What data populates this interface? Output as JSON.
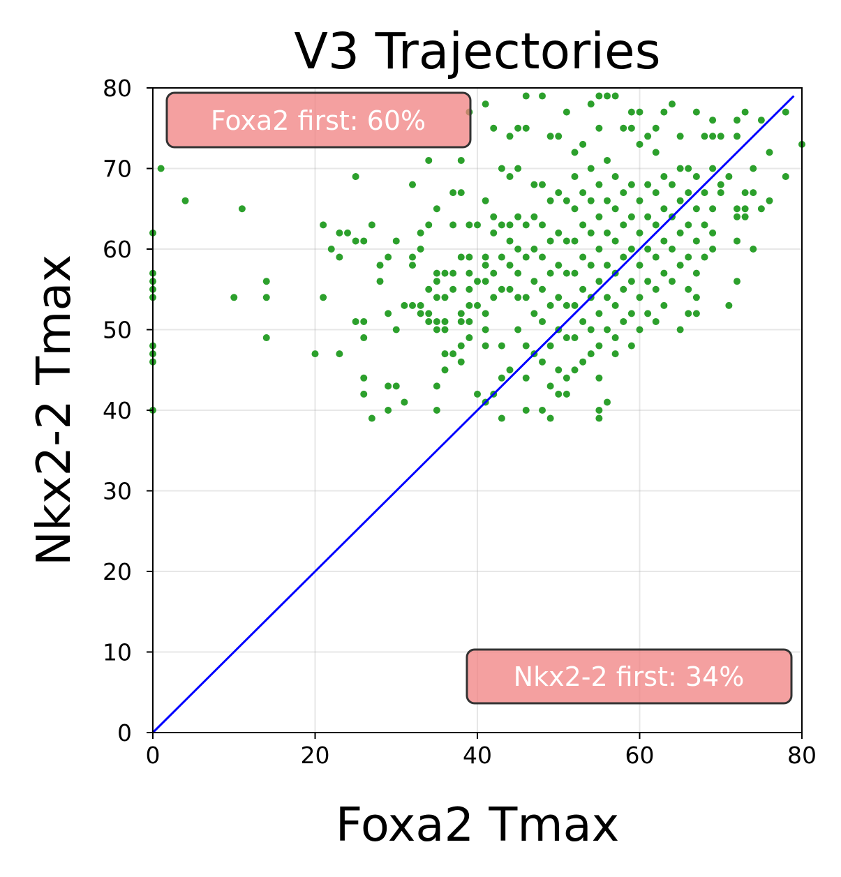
{
  "chart_data": {
    "type": "scatter",
    "title": "V3 Trajectories",
    "xlabel": "Foxa2 Tmax",
    "ylabel": "Nkx2-2 Tmax",
    "xlim": [
      0,
      80
    ],
    "ylim": [
      0,
      80
    ],
    "xticks": [
      "0",
      "20",
      "40",
      "60",
      "80"
    ],
    "yticks": [
      "0",
      "10",
      "20",
      "30",
      "40",
      "50",
      "60",
      "70",
      "80"
    ],
    "grid": true,
    "colors": {
      "points": "#2ca02c",
      "diagonal": "#0000ff",
      "annotation_fill": "#f08080",
      "annotation_edge": "#333333",
      "annotation_text": "#ffffff"
    },
    "diagonal_line": {
      "x": [
        0,
        79
      ],
      "y": [
        0,
        79
      ]
    },
    "annotations": [
      {
        "text": "Foxa2 first: 60%",
        "position": "top-left"
      },
      {
        "text": "Nkx2-2 first: 34%",
        "position": "bottom-right"
      }
    ],
    "series": [
      {
        "points": [
          [
            0,
            62
          ],
          [
            0,
            57
          ],
          [
            0,
            56
          ],
          [
            0,
            55
          ],
          [
            0,
            54
          ],
          [
            0,
            48
          ],
          [
            0,
            47
          ],
          [
            0,
            46
          ],
          [
            0,
            40
          ],
          [
            1,
            70
          ],
          [
            4,
            66
          ],
          [
            10,
            54
          ],
          [
            11,
            65
          ],
          [
            14,
            56
          ],
          [
            14,
            54
          ],
          [
            14,
            49
          ],
          [
            20,
            47
          ],
          [
            21,
            63
          ],
          [
            21,
            54
          ],
          [
            22,
            60
          ],
          [
            23,
            62
          ],
          [
            23,
            59
          ],
          [
            23,
            47
          ],
          [
            24,
            62
          ],
          [
            25,
            69
          ],
          [
            25,
            61
          ],
          [
            25,
            51
          ],
          [
            26,
            61
          ],
          [
            26,
            51
          ],
          [
            26,
            49
          ],
          [
            26,
            44
          ],
          [
            26,
            42
          ],
          [
            27,
            63
          ],
          [
            27,
            39
          ],
          [
            28,
            58
          ],
          [
            28,
            56
          ],
          [
            29,
            59
          ],
          [
            29,
            52
          ],
          [
            29,
            43
          ],
          [
            29,
            40
          ],
          [
            30,
            61
          ],
          [
            30,
            50
          ],
          [
            30,
            43
          ],
          [
            31,
            53
          ],
          [
            31,
            41
          ],
          [
            32,
            68
          ],
          [
            32,
            59
          ],
          [
            32,
            58
          ],
          [
            32,
            53
          ],
          [
            33,
            62
          ],
          [
            33,
            60
          ],
          [
            33,
            53
          ],
          [
            33,
            52
          ],
          [
            34,
            71
          ],
          [
            34,
            63
          ],
          [
            34,
            55
          ],
          [
            34,
            52
          ],
          [
            34,
            51
          ],
          [
            35,
            65
          ],
          [
            35,
            57
          ],
          [
            35,
            56
          ],
          [
            35,
            54
          ],
          [
            35,
            51
          ],
          [
            35,
            50
          ],
          [
            35,
            43
          ],
          [
            35,
            40
          ],
          [
            36,
            57
          ],
          [
            36,
            54
          ],
          [
            36,
            51
          ],
          [
            36,
            50
          ],
          [
            36,
            47
          ],
          [
            36,
            45
          ],
          [
            37,
            67
          ],
          [
            37,
            63
          ],
          [
            37,
            57
          ],
          [
            37,
            55
          ],
          [
            37,
            47
          ],
          [
            38,
            71
          ],
          [
            38,
            67
          ],
          [
            38,
            59
          ],
          [
            38,
            52
          ],
          [
            38,
            51
          ],
          [
            38,
            48
          ],
          [
            38,
            46
          ],
          [
            39,
            77
          ],
          [
            39,
            63
          ],
          [
            39,
            59
          ],
          [
            39,
            57
          ],
          [
            39,
            55
          ],
          [
            39,
            53
          ],
          [
            39,
            51
          ],
          [
            39,
            49
          ],
          [
            40,
            63
          ],
          [
            40,
            56
          ],
          [
            40,
            53
          ],
          [
            40,
            42
          ],
          [
            41,
            78
          ],
          [
            41,
            66
          ],
          [
            41,
            59
          ],
          [
            41,
            58
          ],
          [
            41,
            56
          ],
          [
            41,
            52
          ],
          [
            41,
            50
          ],
          [
            41,
            48
          ],
          [
            41,
            41
          ],
          [
            42,
            75
          ],
          [
            42,
            64
          ],
          [
            42,
            62
          ],
          [
            42,
            57
          ],
          [
            42,
            54
          ],
          [
            42,
            42
          ],
          [
            43,
            70
          ],
          [
            43,
            63
          ],
          [
            43,
            59
          ],
          [
            43,
            55
          ],
          [
            43,
            48
          ],
          [
            43,
            44
          ],
          [
            43,
            39
          ],
          [
            44,
            74
          ],
          [
            44,
            69
          ],
          [
            44,
            63
          ],
          [
            44,
            61
          ],
          [
            44,
            58
          ],
          [
            44,
            55
          ],
          [
            44,
            45
          ],
          [
            45,
            75
          ],
          [
            45,
            70
          ],
          [
            45,
            64
          ],
          [
            45,
            60
          ],
          [
            45,
            57
          ],
          [
            45,
            54
          ],
          [
            45,
            50
          ],
          [
            46,
            79
          ],
          [
            46,
            75
          ],
          [
            46,
            63
          ],
          [
            46,
            59
          ],
          [
            46,
            54
          ],
          [
            46,
            48
          ],
          [
            46,
            44
          ],
          [
            46,
            40
          ],
          [
            47,
            68
          ],
          [
            47,
            64
          ],
          [
            47,
            60
          ],
          [
            47,
            56
          ],
          [
            47,
            52
          ],
          [
            47,
            47
          ],
          [
            48,
            79
          ],
          [
            48,
            68
          ],
          [
            48,
            63
          ],
          [
            48,
            59
          ],
          [
            48,
            55
          ],
          [
            48,
            51
          ],
          [
            48,
            46
          ],
          [
            48,
            40
          ],
          [
            49,
            74
          ],
          [
            49,
            66
          ],
          [
            49,
            61
          ],
          [
            49,
            57
          ],
          [
            49,
            53
          ],
          [
            49,
            48
          ],
          [
            49,
            43
          ],
          [
            49,
            39
          ],
          [
            50,
            74
          ],
          [
            50,
            67
          ],
          [
            50,
            62
          ],
          [
            50,
            58
          ],
          [
            50,
            54
          ],
          [
            50,
            50
          ],
          [
            50,
            45
          ],
          [
            50,
            42
          ],
          [
            51,
            77
          ],
          [
            51,
            66
          ],
          [
            51,
            61
          ],
          [
            51,
            57
          ],
          [
            51,
            53
          ],
          [
            51,
            49
          ],
          [
            51,
            44
          ],
          [
            51,
            42
          ],
          [
            52,
            72
          ],
          [
            52,
            69
          ],
          [
            52,
            65
          ],
          [
            52,
            61
          ],
          [
            52,
            57
          ],
          [
            52,
            53
          ],
          [
            52,
            49
          ],
          [
            52,
            45
          ],
          [
            53,
            73
          ],
          [
            53,
            67
          ],
          [
            53,
            63
          ],
          [
            53,
            59
          ],
          [
            53,
            55
          ],
          [
            53,
            51
          ],
          [
            53,
            46
          ],
          [
            54,
            78
          ],
          [
            54,
            70
          ],
          [
            54,
            66
          ],
          [
            54,
            62
          ],
          [
            54,
            58
          ],
          [
            54,
            54
          ],
          [
            54,
            50
          ],
          [
            54,
            47
          ],
          [
            55,
            79
          ],
          [
            55,
            75
          ],
          [
            55,
            68
          ],
          [
            55,
            64
          ],
          [
            55,
            60
          ],
          [
            55,
            56
          ],
          [
            55,
            52
          ],
          [
            55,
            48
          ],
          [
            55,
            44
          ],
          [
            55,
            40
          ],
          [
            55,
            39
          ],
          [
            56,
            79
          ],
          [
            56,
            71
          ],
          [
            56,
            66
          ],
          [
            56,
            62
          ],
          [
            56,
            58
          ],
          [
            56,
            54
          ],
          [
            56,
            50
          ],
          [
            56,
            41
          ],
          [
            57,
            79
          ],
          [
            57,
            69
          ],
          [
            57,
            65
          ],
          [
            57,
            61
          ],
          [
            57,
            57
          ],
          [
            57,
            53
          ],
          [
            57,
            49
          ],
          [
            57,
            47
          ],
          [
            58,
            75
          ],
          [
            58,
            67
          ],
          [
            58,
            63
          ],
          [
            58,
            59
          ],
          [
            58,
            55
          ],
          [
            58,
            51
          ],
          [
            59,
            77
          ],
          [
            59,
            75
          ],
          [
            59,
            68
          ],
          [
            59,
            64
          ],
          [
            59,
            60
          ],
          [
            59,
            56
          ],
          [
            59,
            52
          ],
          [
            59,
            48
          ],
          [
            60,
            77
          ],
          [
            60,
            73
          ],
          [
            60,
            66
          ],
          [
            60,
            62
          ],
          [
            60,
            58
          ],
          [
            60,
            54
          ],
          [
            60,
            50
          ],
          [
            61,
            74
          ],
          [
            61,
            68
          ],
          [
            61,
            64
          ],
          [
            61,
            60
          ],
          [
            61,
            56
          ],
          [
            61,
            52
          ],
          [
            62,
            75
          ],
          [
            62,
            72
          ],
          [
            62,
            67
          ],
          [
            62,
            63
          ],
          [
            62,
            59
          ],
          [
            62,
            55
          ],
          [
            62,
            51
          ],
          [
            63,
            77
          ],
          [
            63,
            69
          ],
          [
            63,
            65
          ],
          [
            63,
            61
          ],
          [
            63,
            57
          ],
          [
            63,
            53
          ],
          [
            64,
            78
          ],
          [
            64,
            68
          ],
          [
            64,
            64
          ],
          [
            64,
            60
          ],
          [
            64,
            56
          ],
          [
            65,
            74
          ],
          [
            65,
            70
          ],
          [
            65,
            66
          ],
          [
            65,
            62
          ],
          [
            65,
            58
          ],
          [
            65,
            50
          ],
          [
            66,
            70
          ],
          [
            66,
            67
          ],
          [
            66,
            63
          ],
          [
            66,
            59
          ],
          [
            66,
            55
          ],
          [
            66,
            52
          ],
          [
            67,
            77
          ],
          [
            67,
            69
          ],
          [
            67,
            65
          ],
          [
            67,
            61
          ],
          [
            67,
            57
          ],
          [
            67,
            54
          ],
          [
            67,
            52
          ],
          [
            68,
            74
          ],
          [
            68,
            67
          ],
          [
            68,
            63
          ],
          [
            68,
            59
          ],
          [
            69,
            76
          ],
          [
            69,
            74
          ],
          [
            69,
            70
          ],
          [
            69,
            65
          ],
          [
            69,
            62
          ],
          [
            69,
            60
          ],
          [
            70,
            74
          ],
          [
            70,
            68
          ],
          [
            70,
            67
          ],
          [
            71,
            69
          ],
          [
            71,
            53
          ],
          [
            72,
            76
          ],
          [
            72,
            74
          ],
          [
            72,
            65
          ],
          [
            72,
            64
          ],
          [
            72,
            61
          ],
          [
            72,
            56
          ],
          [
            73,
            77
          ],
          [
            73,
            67
          ],
          [
            73,
            65
          ],
          [
            73,
            64
          ],
          [
            74,
            70
          ],
          [
            74,
            67
          ],
          [
            74,
            60
          ],
          [
            75,
            76
          ],
          [
            75,
            65
          ],
          [
            76,
            72
          ],
          [
            76,
            66
          ],
          [
            78,
            77
          ],
          [
            78,
            69
          ],
          [
            80,
            73
          ]
        ]
      }
    ]
  }
}
